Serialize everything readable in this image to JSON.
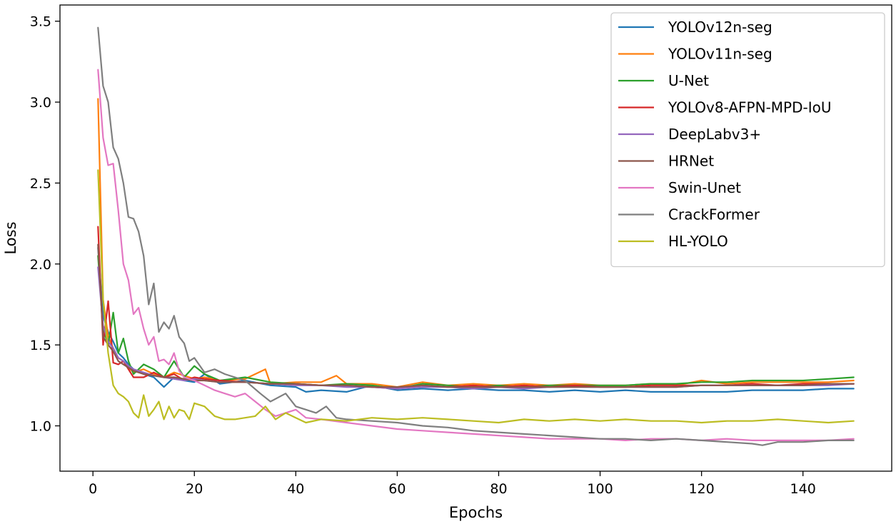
{
  "chart_data": {
    "type": "line",
    "title": "",
    "xlabel": "Epochs",
    "ylabel": "Loss",
    "xlim": [
      -6.5,
      157.5
    ],
    "ylim": [
      0.72,
      3.6
    ],
    "xticks": [
      0,
      20,
      40,
      60,
      80,
      100,
      120,
      140
    ],
    "yticks": [
      1.0,
      1.5,
      2.0,
      2.5,
      3.0,
      3.5
    ],
    "ytick_labels": [
      "1.0",
      "1.5",
      "2.0",
      "2.5",
      "3.0",
      "3.5"
    ],
    "grid": false,
    "legend_position": "top-right",
    "series": [
      {
        "name": "YOLOv12n-seg",
        "color": "#1f77b4",
        "x": [
          1,
          2,
          3,
          4,
          5,
          6,
          7,
          8,
          10,
          12,
          14,
          16,
          18,
          20,
          22,
          25,
          30,
          35,
          40,
          42,
          45,
          50,
          55,
          60,
          65,
          70,
          75,
          80,
          85,
          90,
          95,
          100,
          105,
          110,
          115,
          120,
          125,
          130,
          135,
          140,
          145,
          150
        ],
        "y": [
          2.1,
          1.68,
          1.58,
          1.52,
          1.45,
          1.42,
          1.38,
          1.35,
          1.32,
          1.3,
          1.24,
          1.3,
          1.28,
          1.27,
          1.32,
          1.26,
          1.28,
          1.25,
          1.24,
          1.21,
          1.22,
          1.21,
          1.25,
          1.22,
          1.23,
          1.22,
          1.23,
          1.22,
          1.22,
          1.21,
          1.22,
          1.21,
          1.22,
          1.21,
          1.21,
          1.21,
          1.21,
          1.22,
          1.22,
          1.22,
          1.23,
          1.23
        ]
      },
      {
        "name": "YOLOv11n-seg",
        "color": "#ff7f0e",
        "x": [
          1,
          2,
          3,
          4,
          5,
          6,
          7,
          8,
          10,
          12,
          14,
          16,
          18,
          20,
          22,
          25,
          30,
          34,
          35,
          40,
          45,
          48,
          50,
          55,
          60,
          65,
          70,
          75,
          80,
          85,
          90,
          95,
          100,
          105,
          110,
          115,
          120,
          125,
          130,
          135,
          140,
          145,
          150
        ],
        "y": [
          3.02,
          1.78,
          1.55,
          1.48,
          1.42,
          1.4,
          1.36,
          1.33,
          1.35,
          1.32,
          1.3,
          1.33,
          1.31,
          1.29,
          1.3,
          1.28,
          1.29,
          1.35,
          1.26,
          1.27,
          1.27,
          1.31,
          1.26,
          1.26,
          1.24,
          1.27,
          1.25,
          1.26,
          1.25,
          1.26,
          1.25,
          1.26,
          1.25,
          1.25,
          1.26,
          1.25,
          1.28,
          1.26,
          1.27,
          1.27,
          1.27,
          1.27,
          1.28
        ]
      },
      {
        "name": "U-Net",
        "color": "#2ca02c",
        "x": [
          1,
          2,
          3,
          4,
          5,
          6,
          7,
          8,
          10,
          12,
          14,
          16,
          18,
          20,
          22,
          25,
          30,
          35,
          40,
          45,
          50,
          55,
          60,
          65,
          70,
          75,
          80,
          85,
          90,
          95,
          100,
          105,
          110,
          115,
          120,
          125,
          130,
          135,
          140,
          145,
          150
        ],
        "y": [
          2.05,
          1.6,
          1.5,
          1.7,
          1.45,
          1.54,
          1.4,
          1.32,
          1.38,
          1.35,
          1.3,
          1.4,
          1.3,
          1.37,
          1.32,
          1.28,
          1.3,
          1.27,
          1.26,
          1.25,
          1.26,
          1.25,
          1.23,
          1.26,
          1.25,
          1.24,
          1.25,
          1.24,
          1.25,
          1.25,
          1.25,
          1.25,
          1.26,
          1.26,
          1.27,
          1.27,
          1.28,
          1.28,
          1.28,
          1.29,
          1.3
        ]
      },
      {
        "name": "YOLOv8-AFPN-MPD-IoU",
        "color": "#d62728",
        "x": [
          1,
          2,
          3,
          4,
          5,
          6,
          7,
          8,
          10,
          12,
          14,
          16,
          18,
          20,
          22,
          25,
          30,
          35,
          40,
          45,
          50,
          55,
          60,
          65,
          70,
          75,
          80,
          85,
          90,
          95,
          100,
          105,
          110,
          115,
          120,
          125,
          130,
          135,
          140,
          145,
          150
        ],
        "y": [
          2.23,
          1.5,
          1.77,
          1.39,
          1.38,
          1.4,
          1.35,
          1.3,
          1.3,
          1.33,
          1.3,
          1.32,
          1.28,
          1.3,
          1.29,
          1.28,
          1.27,
          1.26,
          1.26,
          1.25,
          1.25,
          1.24,
          1.23,
          1.25,
          1.24,
          1.25,
          1.24,
          1.25,
          1.24,
          1.25,
          1.24,
          1.24,
          1.25,
          1.25,
          1.25,
          1.25,
          1.26,
          1.25,
          1.26,
          1.26,
          1.26
        ]
      },
      {
        "name": "DeepLabv3+",
        "color": "#9467bd",
        "x": [
          1,
          2,
          3,
          4,
          5,
          6,
          7,
          8,
          10,
          12,
          14,
          16,
          18,
          20,
          22,
          25,
          30,
          35,
          40,
          45,
          50,
          55,
          60,
          65,
          70,
          75,
          80,
          85,
          90,
          95,
          100,
          105,
          110,
          115,
          120,
          125,
          130,
          135,
          140,
          145,
          150
        ],
        "y": [
          1.98,
          1.62,
          1.52,
          1.48,
          1.42,
          1.4,
          1.37,
          1.35,
          1.33,
          1.31,
          1.3,
          1.29,
          1.28,
          1.29,
          1.28,
          1.27,
          1.27,
          1.26,
          1.25,
          1.25,
          1.24,
          1.24,
          1.23,
          1.24,
          1.24,
          1.23,
          1.24,
          1.23,
          1.24,
          1.24,
          1.24,
          1.24,
          1.24,
          1.24,
          1.25,
          1.25,
          1.25,
          1.25,
          1.25,
          1.25,
          1.26
        ]
      },
      {
        "name": "HRNet",
        "color": "#8c564b",
        "x": [
          1,
          2,
          3,
          4,
          5,
          6,
          7,
          8,
          10,
          12,
          14,
          16,
          18,
          20,
          22,
          25,
          30,
          35,
          40,
          45,
          50,
          55,
          60,
          65,
          70,
          75,
          80,
          85,
          90,
          95,
          100,
          105,
          110,
          115,
          120,
          125,
          130,
          135,
          140,
          145,
          150
        ],
        "y": [
          2.12,
          1.55,
          1.5,
          1.46,
          1.4,
          1.38,
          1.36,
          1.34,
          1.32,
          1.31,
          1.3,
          1.3,
          1.29,
          1.28,
          1.28,
          1.27,
          1.27,
          1.26,
          1.26,
          1.25,
          1.25,
          1.24,
          1.24,
          1.25,
          1.24,
          1.24,
          1.24,
          1.24,
          1.24,
          1.24,
          1.24,
          1.24,
          1.24,
          1.24,
          1.25,
          1.25,
          1.25,
          1.25,
          1.25,
          1.26,
          1.26
        ]
      },
      {
        "name": "Swin-Unet",
        "color": "#e377c2",
        "x": [
          1,
          2,
          3,
          4,
          5,
          6,
          7,
          8,
          9,
          10,
          11,
          12,
          13,
          14,
          15,
          16,
          17,
          18,
          20,
          22,
          24,
          26,
          28,
          30,
          32,
          34,
          36,
          38,
          40,
          42,
          45,
          50,
          55,
          60,
          65,
          70,
          75,
          80,
          85,
          90,
          95,
          100,
          105,
          110,
          115,
          120,
          125,
          130,
          135,
          140,
          145,
          150
        ],
        "y": [
          3.2,
          2.78,
          2.61,
          2.62,
          2.33,
          2.0,
          1.9,
          1.69,
          1.73,
          1.6,
          1.5,
          1.55,
          1.4,
          1.41,
          1.38,
          1.45,
          1.34,
          1.3,
          1.28,
          1.25,
          1.22,
          1.2,
          1.18,
          1.2,
          1.15,
          1.1,
          1.06,
          1.08,
          1.1,
          1.05,
          1.04,
          1.02,
          1.0,
          0.98,
          0.97,
          0.96,
          0.95,
          0.94,
          0.93,
          0.92,
          0.92,
          0.92,
          0.91,
          0.92,
          0.92,
          0.91,
          0.92,
          0.91,
          0.91,
          0.91,
          0.91,
          0.92
        ]
      },
      {
        "name": "CrackFormer",
        "color": "#7f7f7f",
        "x": [
          1,
          2,
          3,
          4,
          5,
          6,
          7,
          8,
          9,
          10,
          11,
          12,
          13,
          14,
          15,
          16,
          17,
          18,
          19,
          20,
          22,
          24,
          26,
          28,
          30,
          33,
          35,
          38,
          40,
          42,
          44,
          46,
          48,
          50,
          55,
          60,
          65,
          70,
          75,
          80,
          85,
          90,
          95,
          100,
          105,
          110,
          115,
          120,
          125,
          130,
          132,
          135,
          140,
          145,
          150
        ],
        "y": [
          3.46,
          3.1,
          3.0,
          2.72,
          2.65,
          2.5,
          2.29,
          2.28,
          2.2,
          2.05,
          1.75,
          1.88,
          1.58,
          1.64,
          1.6,
          1.68,
          1.55,
          1.51,
          1.4,
          1.42,
          1.33,
          1.35,
          1.32,
          1.3,
          1.28,
          1.2,
          1.15,
          1.2,
          1.12,
          1.1,
          1.08,
          1.12,
          1.05,
          1.04,
          1.03,
          1.02,
          1.0,
          0.99,
          0.97,
          0.96,
          0.95,
          0.94,
          0.93,
          0.92,
          0.92,
          0.91,
          0.92,
          0.91,
          0.9,
          0.89,
          0.88,
          0.9,
          0.9,
          0.91,
          0.91
        ]
      },
      {
        "name": "HL-YOLO",
        "color": "#bcbd22",
        "x": [
          1,
          2,
          3,
          4,
          5,
          6,
          7,
          8,
          9,
          10,
          11,
          12,
          13,
          14,
          15,
          16,
          17,
          18,
          19,
          20,
          22,
          24,
          26,
          28,
          30,
          32,
          34,
          36,
          38,
          40,
          42,
          45,
          50,
          55,
          60,
          65,
          70,
          75,
          80,
          85,
          90,
          95,
          100,
          105,
          110,
          115,
          120,
          125,
          130,
          135,
          140,
          145,
          150
        ],
        "y": [
          2.58,
          1.78,
          1.45,
          1.25,
          1.2,
          1.18,
          1.15,
          1.08,
          1.05,
          1.19,
          1.06,
          1.1,
          1.15,
          1.04,
          1.12,
          1.05,
          1.1,
          1.09,
          1.04,
          1.14,
          1.12,
          1.06,
          1.04,
          1.04,
          1.05,
          1.06,
          1.12,
          1.04,
          1.08,
          1.05,
          1.02,
          1.04,
          1.03,
          1.05,
          1.04,
          1.05,
          1.04,
          1.03,
          1.02,
          1.04,
          1.03,
          1.04,
          1.03,
          1.04,
          1.03,
          1.03,
          1.02,
          1.03,
          1.03,
          1.04,
          1.03,
          1.02,
          1.03
        ]
      }
    ]
  }
}
